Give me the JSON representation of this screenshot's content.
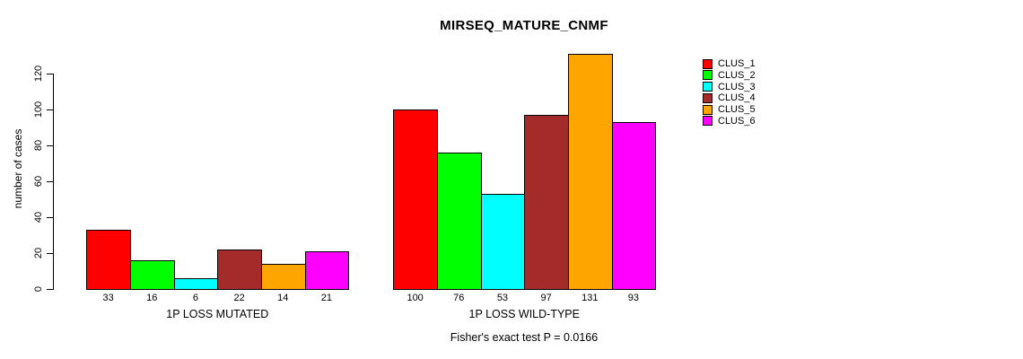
{
  "chart_data": {
    "type": "bar",
    "title": "MIRSEQ_MATURE_CNMF",
    "ylabel": "number of cases",
    "xlabel": "",
    "ylim": [
      0,
      131
    ],
    "yticks": [
      0,
      20,
      40,
      60,
      80,
      100,
      120
    ],
    "grid": false,
    "legend_position": "top-right",
    "categories": [
      "1P LOSS MUTATED",
      "1P LOSS WILD-TYPE"
    ],
    "series": [
      {
        "name": "CLUS_1",
        "color": "#FF0000",
        "values": [
          33,
          100
        ]
      },
      {
        "name": "CLUS_2",
        "color": "#00FF00",
        "values": [
          16,
          76
        ]
      },
      {
        "name": "CLUS_3",
        "color": "#00FFFF",
        "values": [
          6,
          53
        ]
      },
      {
        "name": "CLUS_4",
        "color": "#A52A2A",
        "values": [
          22,
          97
        ]
      },
      {
        "name": "CLUS_5",
        "color": "#FFA500",
        "values": [
          14,
          131
        ]
      },
      {
        "name": "CLUS_6",
        "color": "#FF00FF",
        "values": [
          21,
          93
        ]
      }
    ],
    "bar_value_labels": true,
    "annotation": "Fisher's exact test P = 0.0166"
  },
  "colors": {
    "axis": "#000000",
    "text": "#000000",
    "background": "#FFFFFF"
  }
}
